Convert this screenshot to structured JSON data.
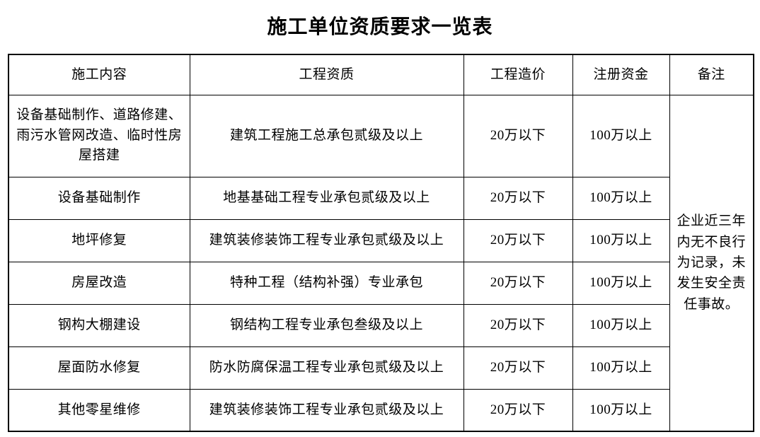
{
  "page": {
    "title": "施工单位资质要求一览表"
  },
  "table": {
    "headers": [
      "施工内容",
      "工程资质",
      "工程造价",
      "注册资金",
      "备注"
    ],
    "rows": [
      {
        "content": "设备基础制作、道路修建、雨污水管网改造、临时性房屋搭建",
        "qualification": "建筑工程施工总承包贰级及以上",
        "cost": "20万以下",
        "capital": "100万以上"
      },
      {
        "content": "设备基础制作",
        "qualification": "地基基础工程专业承包贰级及以上",
        "cost": "20万以下",
        "capital": "100万以上"
      },
      {
        "content": "地坪修复",
        "qualification": "建筑装修装饰工程专业承包贰级及以上",
        "cost": "20万以下",
        "capital": "100万以上"
      },
      {
        "content": "房屋改造",
        "qualification": "特种工程（结构补强）专业承包",
        "cost": "20万以下",
        "capital": "100万以上"
      },
      {
        "content": "钢构大棚建设",
        "qualification": "钢结构工程专业承包叁级及以上",
        "cost": "20万以下",
        "capital": "100万以上"
      },
      {
        "content": "屋面防水修复",
        "qualification": "防水防腐保温工程专业承包贰级及以上",
        "cost": "20万以下",
        "capital": "100万以上"
      },
      {
        "content": "其他零星维修",
        "qualification": "建筑装修装饰工程专业承包贰级及以上",
        "cost": "20万以下",
        "capital": "100万以上"
      }
    ],
    "remark": "企业近三年内无不良行为记录，未发生安全责任事故。",
    "colors": {
      "border": "#000000",
      "text": "#000000",
      "background": "#ffffff"
    }
  }
}
